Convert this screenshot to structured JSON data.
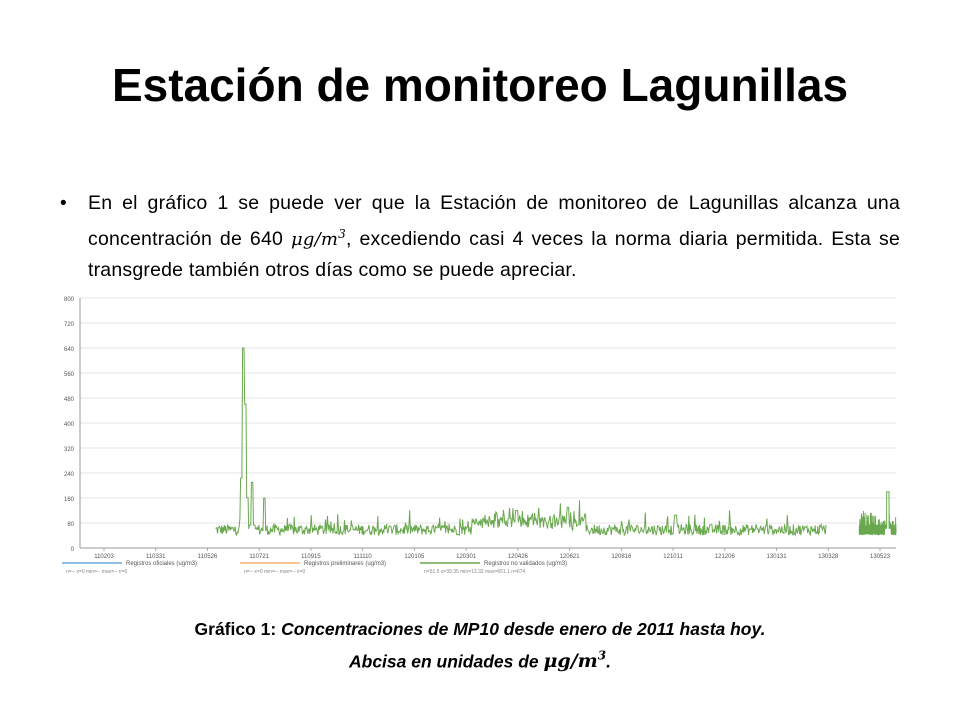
{
  "slide": {
    "title": "Estación de monitoreo Lagunillas",
    "bullet": {
      "part1": "En el gráfico 1 se puede ver que la Estación de monitoreo de Lagunillas alcanza una concentración de 640 ",
      "unit_base": "μg/m",
      "unit_exp": "3",
      "part2": ", excediendo casi 4 veces la norma diaria permitida. Esta se transgrede también otros días como se puede apreciar."
    },
    "caption": {
      "label": "Gráfico 1:",
      "text": " Concentraciones de MP10 desde enero de 2011 hasta hoy.",
      "line2": "Abcisa en unidades de ",
      "unit_base": "μg/m",
      "unit_exp": "3",
      "end": "."
    }
  },
  "chart_data": {
    "type": "line",
    "ylim": [
      0,
      800
    ],
    "yticks": [
      0,
      80,
      160,
      240,
      320,
      400,
      480,
      560,
      640,
      720,
      800
    ],
    "x_tick_labels": [
      "110203",
      "110331",
      "110526",
      "110721",
      "110915",
      "111110",
      "120105",
      "120301",
      "120426",
      "120621",
      "120816",
      "121011",
      "121206",
      "130131",
      "130328",
      "130523"
    ],
    "grid": true,
    "legend_position": "bottom",
    "legend": [
      {
        "name": "Registros oficiales (ug/m3)",
        "stats": "n=-- x=0 min=-- max=-- n=0",
        "color": "#6fa8dc"
      },
      {
        "name": "Registros preliminares (ug/m3)",
        "stats": "n=-- x=0 min=-- max=-- n=0",
        "color": "#f6b26b"
      },
      {
        "name": "Registros no validados (ug/m3)",
        "stats": "n=51.5 s=39.35 min=13.32 max=651.1 n=674",
        "color": "#6aa84f"
      }
    ],
    "series": [
      {
        "name": "Registros no validados (ug/m3)",
        "color": "#6aa84f",
        "segments": [
          {
            "start": 0.166,
            "end": 0.915
          },
          {
            "start": 0.955,
            "end": 1.0
          }
        ],
        "spikes": [
          {
            "x": 0.2,
            "value": 640
          },
          {
            "x": 0.202,
            "value": 460
          },
          {
            "x": 0.211,
            "value": 210
          },
          {
            "x": 0.226,
            "value": 160
          },
          {
            "x": 0.535,
            "value": 120
          },
          {
            "x": 0.598,
            "value": 130
          },
          {
            "x": 0.73,
            "value": 105
          },
          {
            "x": 0.99,
            "value": 180
          }
        ],
        "baseline": 55,
        "noise": 35
      }
    ]
  }
}
